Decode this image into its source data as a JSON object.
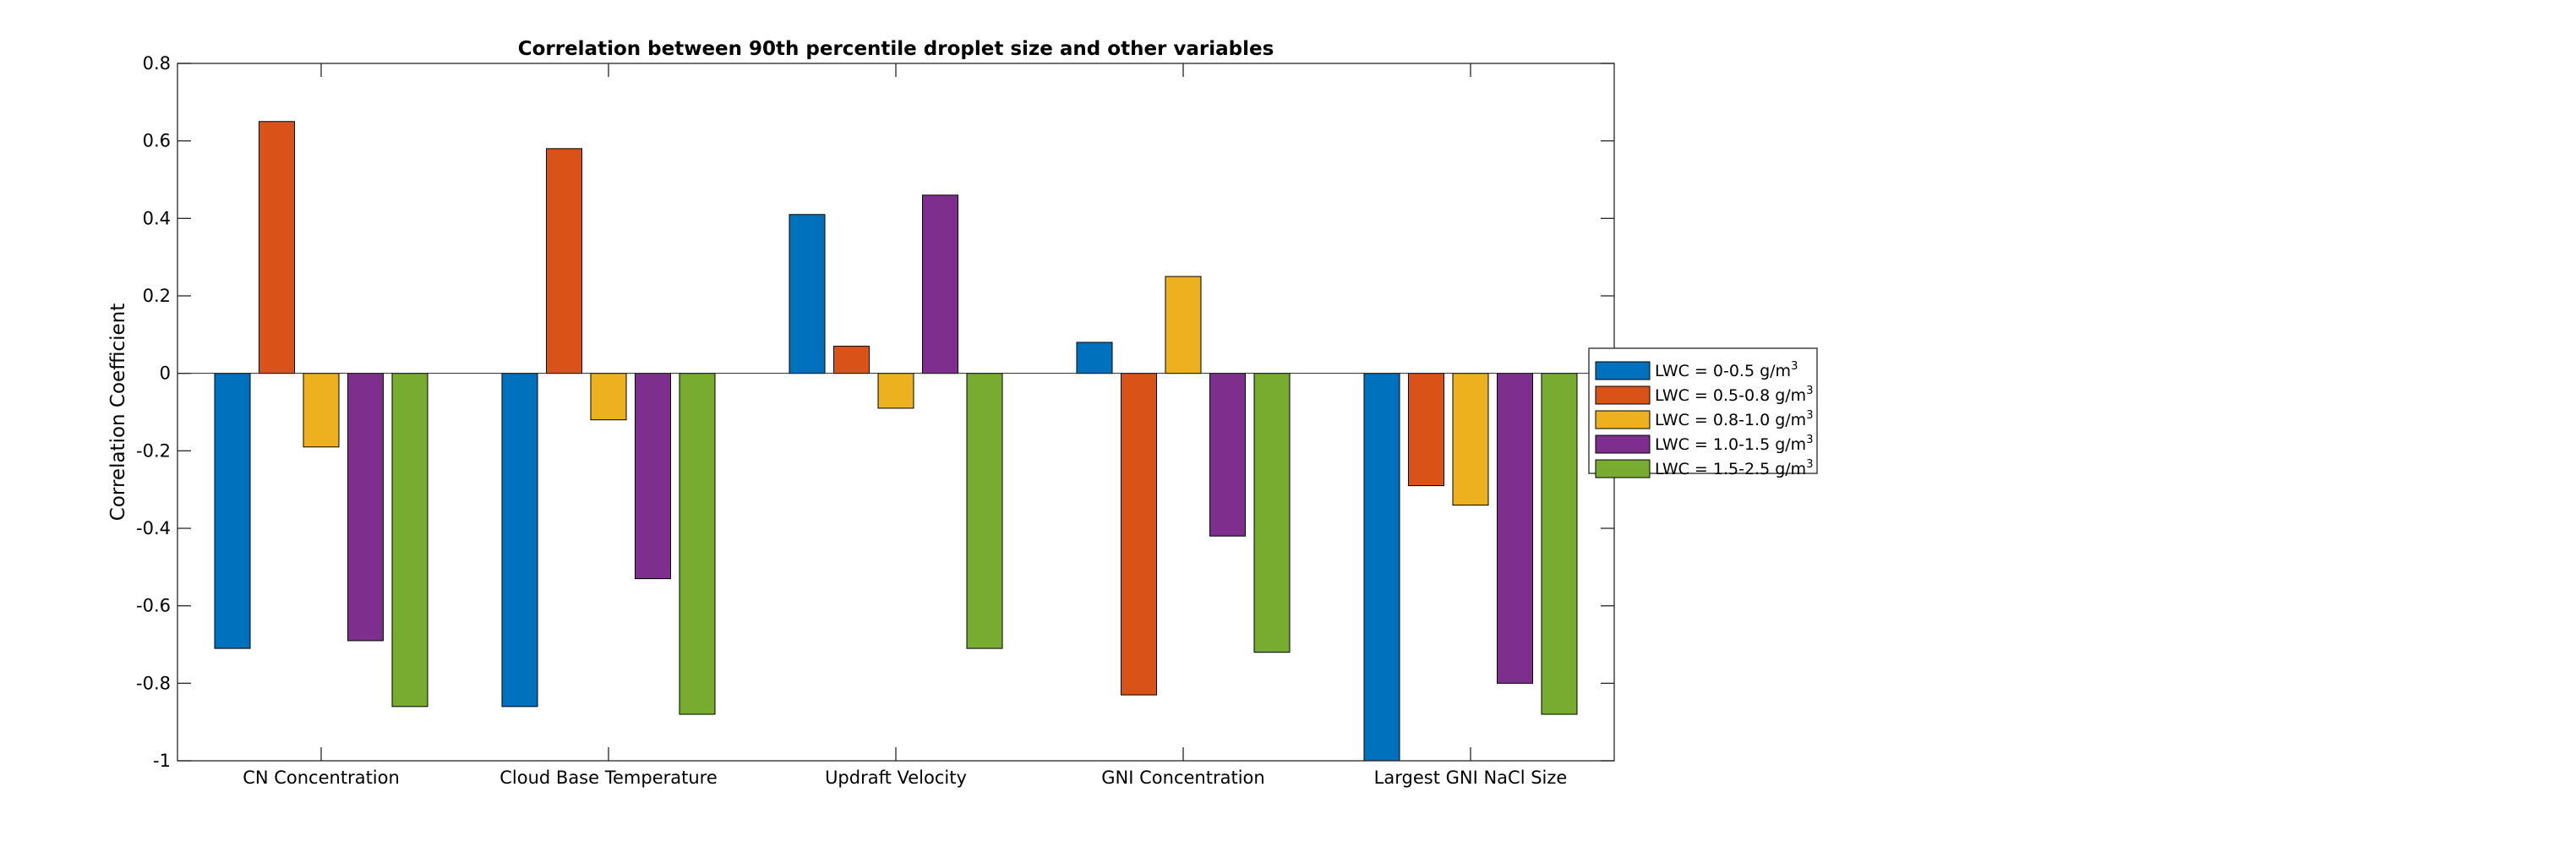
{
  "chart_data": {
    "type": "bar",
    "title": "Correlation between 90th percentile droplet size and other variables",
    "xlabel": "",
    "ylabel": "Correlation Coefficient",
    "ylim": [
      -1,
      0.8
    ],
    "yticks": [
      -1,
      -0.8,
      -0.6,
      -0.4,
      -0.2,
      0,
      0.2,
      0.4,
      0.6,
      0.8
    ],
    "ytick_labels": [
      "-1",
      "-0.8",
      "-0.6",
      "-0.4",
      "-0.2",
      "0",
      "0.2",
      "0.4",
      "0.6",
      "0.8"
    ],
    "grid": false,
    "legend_position": "right, outside plot",
    "categories": [
      "CN Concentration",
      "Cloud Base Temperature",
      "Updraft Velocity",
      "GNI Concentration",
      "Largest GNI NaCl Size"
    ],
    "series": [
      {
        "name": "LWC = 0-0.5 g/m",
        "unit_sup": "3",
        "color": "#0072BD",
        "values": [
          -0.71,
          -0.86,
          0.41,
          0.08,
          -1.0
        ]
      },
      {
        "name": "LWC = 0.5-0.8 g/m",
        "unit_sup": "3",
        "color": "#D95319",
        "values": [
          0.65,
          0.58,
          0.07,
          -0.83,
          -0.29
        ]
      },
      {
        "name": "LWC = 0.8-1.0 g/m",
        "unit_sup": "3",
        "color": "#EDB120",
        "values": [
          -0.19,
          -0.12,
          -0.09,
          0.25,
          -0.34
        ]
      },
      {
        "name": "LWC = 1.0-1.5 g/m",
        "unit_sup": "3",
        "color": "#7E2F8E",
        "values": [
          -0.69,
          -0.53,
          0.46,
          -0.42,
          -0.8
        ]
      },
      {
        "name": "LWC = 1.5-2.5 g/m",
        "unit_sup": "3",
        "color": "#77AC30",
        "values": [
          -0.86,
          -0.88,
          -0.71,
          -0.72,
          -0.88
        ]
      }
    ]
  }
}
